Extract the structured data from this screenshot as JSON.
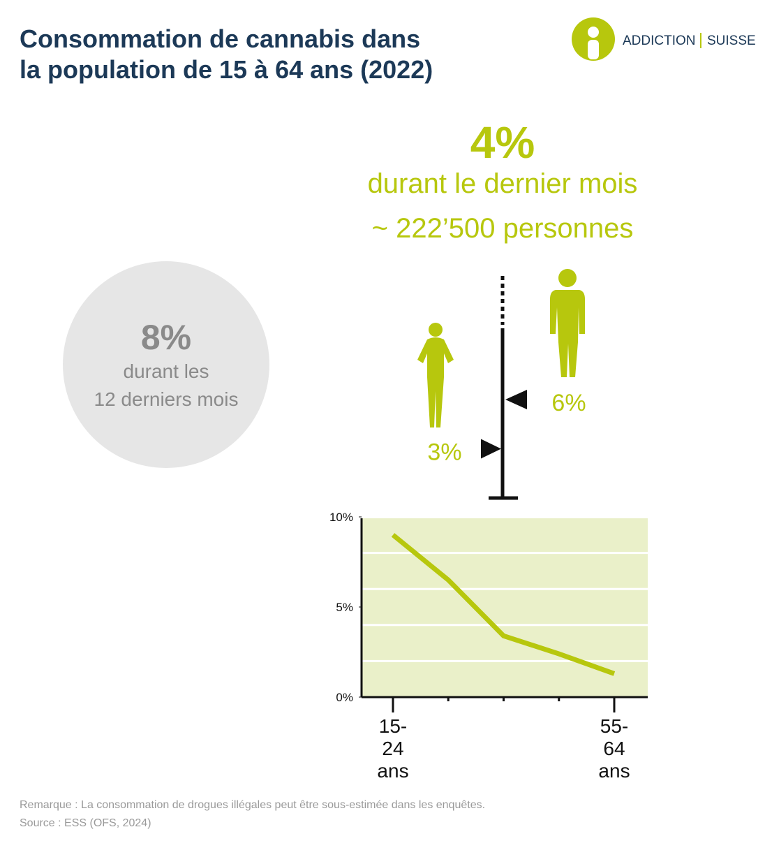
{
  "title": "Consommation de cannabis dans la population de 15 à 64 ans (2022)",
  "logo": {
    "left": "ADDICTION",
    "right": "SUISSE"
  },
  "headline": {
    "value": "4%",
    "line1": "durant le dernier mois",
    "line2": "~ 222’500 personnes"
  },
  "year_box": {
    "value": "8%",
    "line1": "durant les",
    "line2": "12 derniers mois"
  },
  "gender": {
    "color": "#b7c70d",
    "ylim": [
      0,
      6
    ],
    "marks": [
      {
        "value": 3,
        "label": "3%"
      },
      {
        "value": 6,
        "label": "6%"
      }
    ]
  },
  "chart_data": {
    "type": "line",
    "categories": [
      "15-24 ans",
      null,
      null,
      null,
      "55-64 ans"
    ],
    "values": [
      9.0,
      6.5,
      3.4,
      2.4,
      1.3
    ],
    "color": "#b7c70d",
    "ylim": [
      0,
      10
    ],
    "yticks": [
      {
        "value": 0,
        "label": "0%"
      },
      {
        "value": 5,
        "label": "5%"
      },
      {
        "value": 10,
        "label": "10%"
      }
    ],
    "ygrid": [
      2,
      4,
      6,
      8
    ],
    "background": "#eaf0c9"
  },
  "note": "Remarque : La consommation de drogues illégales peut être sous-estimée dans les enquêtes.",
  "source": "Source : ESS (OFS, 2024)"
}
